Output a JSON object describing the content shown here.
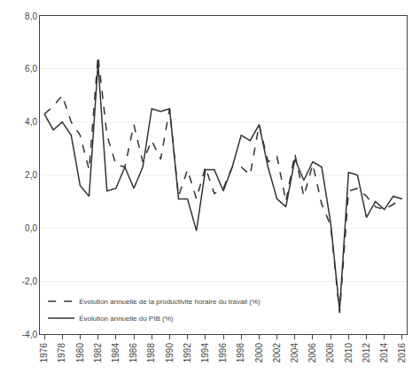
{
  "chart_data": {
    "type": "line",
    "x": [
      1976,
      1977,
      1978,
      1979,
      1980,
      1981,
      1982,
      1983,
      1984,
      1985,
      1986,
      1987,
      1988,
      1989,
      1990,
      1991,
      1992,
      1993,
      1994,
      1995,
      1996,
      1997,
      1998,
      1999,
      2000,
      2001,
      2002,
      2003,
      2004,
      2005,
      2006,
      2007,
      2008,
      2009,
      2010,
      2011,
      2012,
      2013,
      2014,
      2015,
      2016
    ],
    "series": [
      {
        "name": "Évolution annuelle de la productivité horaire du travail (%)",
        "color": "#333333",
        "line_style": "dashed",
        "values": [
          4.3,
          4.6,
          5.0,
          4.0,
          3.5,
          2.2,
          6.5,
          3.5,
          2.4,
          2.3,
          3.9,
          2.5,
          3.3,
          2.6,
          4.5,
          1.2,
          2.2,
          1.1,
          2.3,
          1.3,
          1.5,
          2.3,
          2.3,
          2.0,
          3.9,
          2.5,
          2.7,
          1.0,
          2.8,
          1.2,
          2.4,
          0.9,
          0.1,
          -3.2,
          1.4,
          1.5,
          1.2,
          0.8,
          0.7,
          0.9,
          1.1
        ]
      },
      {
        "name": "Évolution annuelle du PIB (%)",
        "color": "#333333",
        "line_style": "solid",
        "values": [
          4.3,
          3.7,
          4.0,
          3.5,
          1.6,
          1.2,
          6.2,
          1.4,
          1.5,
          2.3,
          1.5,
          2.3,
          4.5,
          4.4,
          4.5,
          1.1,
          1.1,
          -0.1,
          2.2,
          2.2,
          1.4,
          2.3,
          3.5,
          3.3,
          3.9,
          2.3,
          1.1,
          0.8,
          2.6,
          1.8,
          2.5,
          2.3,
          0.2,
          -3.1,
          2.1,
          2.0,
          0.4,
          1.0,
          0.7,
          1.2,
          1.1
        ]
      }
    ],
    "xlim": [
      1975.5,
      2016.5
    ],
    "xticks": [
      1976,
      1978,
      1980,
      1982,
      1984,
      1986,
      1988,
      1990,
      1992,
      1994,
      1996,
      1998,
      2000,
      2002,
      2004,
      2006,
      2008,
      2010,
      2012,
      2014,
      2016
    ],
    "ylim": [
      -4.0,
      8.0
    ],
    "yticks": [
      {
        "value": -4.0,
        "label": "-4,0"
      },
      {
        "value": -2.0,
        "label": "-2,0"
      },
      {
        "value": 0.0,
        "label": "0,0"
      },
      {
        "value": 2.0,
        "label": "2,0"
      },
      {
        "value": 4.0,
        "label": "4,0"
      },
      {
        "value": 6.0,
        "label": "6,0"
      },
      {
        "value": 8.0,
        "label": "8,0"
      }
    ],
    "grid": true,
    "legend": "lower left"
  }
}
